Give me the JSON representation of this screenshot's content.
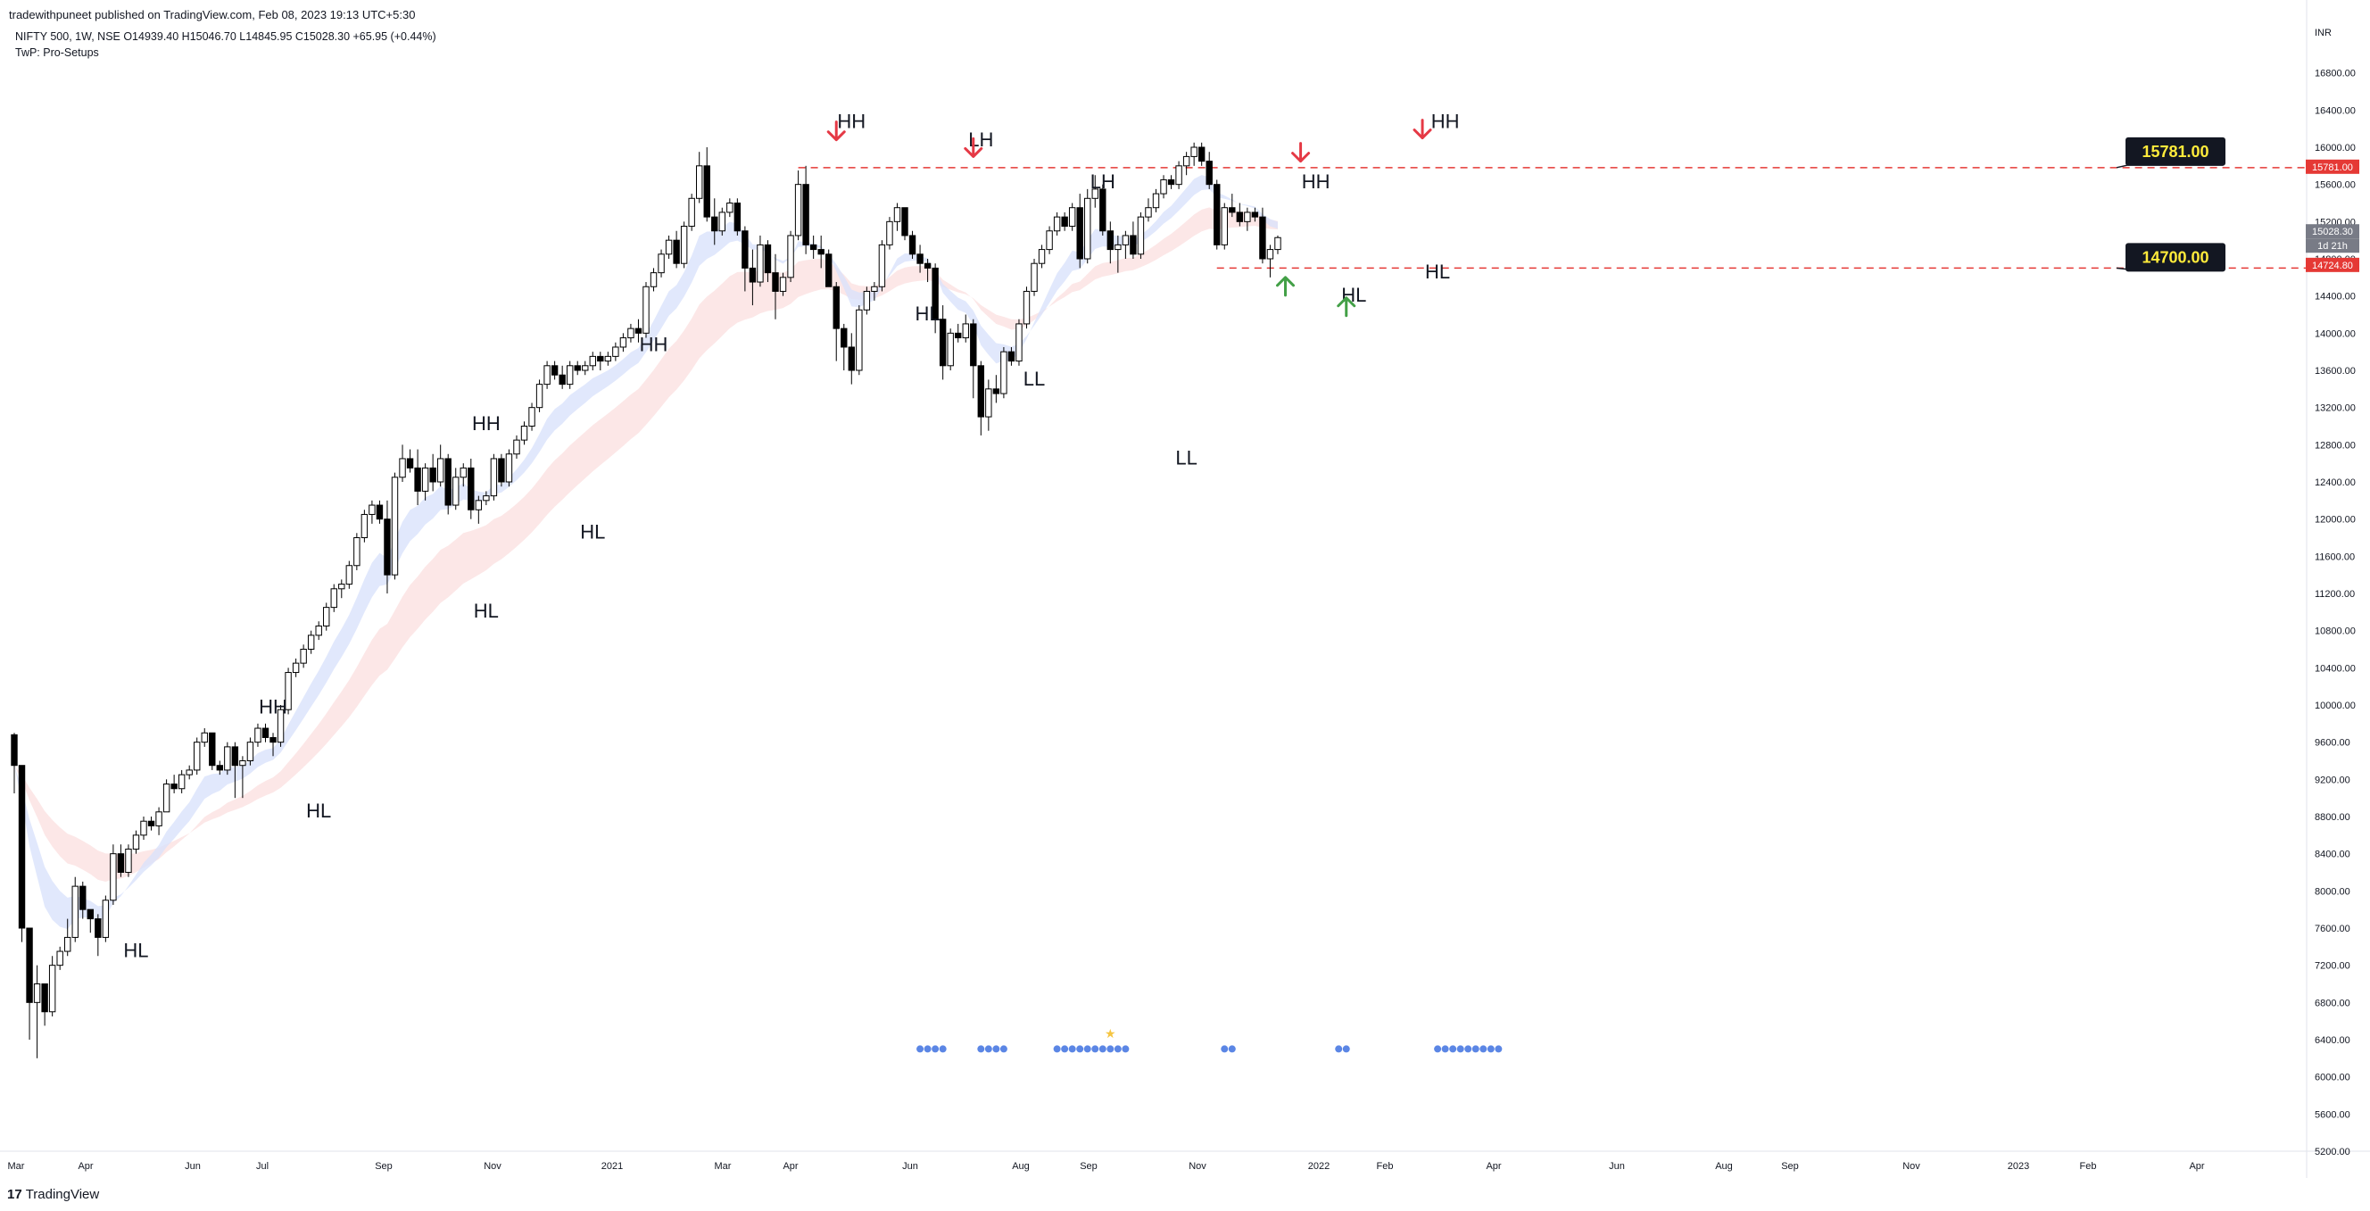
{
  "header": {
    "publisher": "tradewithpuneet published on TradingView.com, Feb 08, 2023 19:13 UTC+5:30",
    "symbol_line": "NIFTY 500, 1W, NSE  O14939.40  H15046.70  L14845.95  C15028.30  +65.95 (+0.44%)",
    "indicator_line": "TwP: Pro-Setups"
  },
  "footer": {
    "brand": "TradingView",
    "logo_glyph": "17"
  },
  "colors": {
    "up_candle": "#ffffff",
    "down_candle": "#000000",
    "fast_band": "#d9e2fb",
    "slow_band": "#fbe1e1",
    "grey_band": "#e6e6e6",
    "resistance_line": "#e53935",
    "arrow_down": "#e53945",
    "arrow_up": "#43a047",
    "signal_dot": "#5b86e5",
    "star": "#f5c542",
    "callout_bg": "#131722",
    "callout_text": "#ffeb3b",
    "price_badge": "#787b86",
    "red_badge": "#e53935"
  },
  "chart_data": {
    "type": "candlestick",
    "title": "",
    "xlabel": "",
    "ylabel": "",
    "currency_label": "INR",
    "ylim": [
      5200,
      17200
    ],
    "x_tick_labels": [
      "Mar",
      "Apr",
      "Jun",
      "Jul",
      "Sep",
      "Nov",
      "2021",
      "Mar",
      "Apr",
      "Jun",
      "Aug",
      "Sep",
      "Nov",
      "2022",
      "Feb",
      "Apr",
      "Jun",
      "Aug",
      "Sep",
      "Nov",
      "2023",
      "Feb",
      "Apr"
    ],
    "y_tick_labels": [
      5200,
      5600,
      6000,
      6400,
      6800,
      7200,
      7600,
      8000,
      8400,
      8800,
      9200,
      9600,
      10000,
      10400,
      10800,
      11200,
      11600,
      12000,
      12400,
      12800,
      13200,
      13600,
      14000,
      14400,
      14800,
      15200,
      15600,
      16000,
      16400,
      16800
    ],
    "candles_ohlc_weekly_start_mar_2020": [
      [
        9680,
        9700,
        9050,
        9350
      ],
      [
        9350,
        9350,
        7450,
        7600
      ],
      [
        7600,
        7600,
        6400,
        6800
      ],
      [
        6800,
        7200,
        6200,
        7000
      ],
      [
        7000,
        7000,
        6550,
        6700
      ],
      [
        6700,
        7300,
        6650,
        7200
      ],
      [
        7200,
        7400,
        7150,
        7350
      ],
      [
        7350,
        7700,
        7300,
        7500
      ],
      [
        7500,
        8150,
        7450,
        8050
      ],
      [
        8050,
        8100,
        7700,
        7800
      ],
      [
        7800,
        7800,
        7550,
        7700
      ],
      [
        7700,
        7750,
        7300,
        7500
      ],
      [
        7500,
        7950,
        7450,
        7900
      ],
      [
        7900,
        8500,
        7850,
        8400
      ],
      [
        8400,
        8500,
        8150,
        8200
      ],
      [
        8200,
        8500,
        8150,
        8450
      ],
      [
        8450,
        8650,
        8400,
        8600
      ],
      [
        8600,
        8800,
        8550,
        8750
      ],
      [
        8750,
        8800,
        8650,
        8700
      ],
      [
        8700,
        8900,
        8600,
        8850
      ],
      [
        8850,
        9200,
        8850,
        9150
      ],
      [
        9150,
        9250,
        9050,
        9100
      ],
      [
        9100,
        9300,
        9050,
        9250
      ],
      [
        9250,
        9350,
        9200,
        9300
      ],
      [
        9300,
        9650,
        9250,
        9600
      ],
      [
        9600,
        9750,
        9550,
        9700
      ],
      [
        9700,
        9700,
        9300,
        9350
      ],
      [
        9350,
        9400,
        9250,
        9300
      ],
      [
        9300,
        9600,
        9250,
        9550
      ],
      [
        9550,
        9600,
        9000,
        9350
      ],
      [
        9350,
        9450,
        9000,
        9400
      ],
      [
        9400,
        9650,
        9350,
        9600
      ],
      [
        9600,
        9800,
        9550,
        9750
      ],
      [
        9750,
        9800,
        9600,
        9650
      ],
      [
        9650,
        9700,
        9450,
        9600
      ],
      [
        9600,
        10000,
        9550,
        9950
      ],
      [
        9950,
        10400,
        9900,
        10350
      ],
      [
        10350,
        10500,
        10300,
        10450
      ],
      [
        10450,
        10650,
        10400,
        10600
      ],
      [
        10600,
        10800,
        10550,
        10750
      ],
      [
        10750,
        10900,
        10700,
        10850
      ],
      [
        10850,
        11100,
        10800,
        11050
      ],
      [
        11050,
        11300,
        11000,
        11250
      ],
      [
        11250,
        11350,
        11150,
        11300
      ],
      [
        11300,
        11550,
        11250,
        11500
      ],
      [
        11500,
        11850,
        11450,
        11800
      ],
      [
        11800,
        12100,
        11750,
        12050
      ],
      [
        12050,
        12200,
        11950,
        12150
      ],
      [
        12150,
        12200,
        11950,
        12000
      ],
      [
        12000,
        12200,
        11200,
        11400
      ],
      [
        11400,
        12500,
        11350,
        12450
      ],
      [
        12450,
        12800,
        12400,
        12650
      ],
      [
        12650,
        12750,
        12500,
        12550
      ],
      [
        12550,
        12750,
        12150,
        12300
      ],
      [
        12300,
        12600,
        12200,
        12550
      ],
      [
        12550,
        12700,
        12300,
        12400
      ],
      [
        12400,
        12800,
        12350,
        12650
      ],
      [
        12650,
        12700,
        12050,
        12150
      ],
      [
        12150,
        12550,
        12100,
        12450
      ],
      [
        12450,
        12600,
        12350,
        12550
      ],
      [
        12550,
        12650,
        12000,
        12100
      ],
      [
        12100,
        12250,
        11950,
        12200
      ],
      [
        12200,
        12300,
        12150,
        12250
      ],
      [
        12250,
        12700,
        12200,
        12650
      ],
      [
        12650,
        12700,
        12350,
        12400
      ],
      [
        12400,
        12750,
        12350,
        12700
      ],
      [
        12700,
        12900,
        12650,
        12850
      ],
      [
        12850,
        13050,
        12800,
        13000
      ],
      [
        13000,
        13250,
        12950,
        13200
      ],
      [
        13200,
        13500,
        13150,
        13450
      ],
      [
        13450,
        13700,
        13400,
        13650
      ],
      [
        13650,
        13700,
        13500,
        13550
      ],
      [
        13550,
        13650,
        13400,
        13450
      ],
      [
        13450,
        13700,
        13400,
        13650
      ],
      [
        13650,
        13700,
        13550,
        13600
      ],
      [
        13600,
        13700,
        13550,
        13650
      ],
      [
        13650,
        13800,
        13600,
        13750
      ],
      [
        13750,
        13800,
        13600,
        13700
      ],
      [
        13700,
        13800,
        13650,
        13750
      ],
      [
        13750,
        13900,
        13700,
        13850
      ],
      [
        13850,
        14000,
        13800,
        13950
      ],
      [
        13950,
        14100,
        13900,
        14050
      ],
      [
        14050,
        14150,
        13900,
        14000
      ],
      [
        14000,
        14550,
        13950,
        14500
      ],
      [
        14500,
        14700,
        14450,
        14650
      ],
      [
        14650,
        14900,
        14600,
        14850
      ],
      [
        14850,
        15050,
        14800,
        15000
      ],
      [
        15000,
        15100,
        14700,
        14750
      ],
      [
        14750,
        15200,
        14700,
        15150
      ],
      [
        15150,
        15500,
        15100,
        15450
      ],
      [
        15450,
        15950,
        15400,
        15800
      ],
      [
        15800,
        16000,
        15200,
        15250
      ],
      [
        15250,
        15450,
        14950,
        15100
      ],
      [
        15100,
        15350,
        15050,
        15300
      ],
      [
        15300,
        15450,
        15250,
        15400
      ],
      [
        15400,
        15450,
        15050,
        15100
      ],
      [
        15100,
        15150,
        14450,
        14700
      ],
      [
        14700,
        14900,
        14300,
        14550
      ],
      [
        14550,
        15050,
        14500,
        14950
      ],
      [
        14950,
        15000,
        14550,
        14650
      ],
      [
        14650,
        14850,
        14150,
        14450
      ],
      [
        14450,
        14650,
        14400,
        14600
      ],
      [
        14600,
        15100,
        14550,
        15050
      ],
      [
        15050,
        15750,
        15000,
        15600
      ],
      [
        15600,
        15800,
        14850,
        14950
      ],
      [
        14950,
        15050,
        14800,
        14900
      ],
      [
        14900,
        15050,
        14700,
        14850
      ],
      [
        14850,
        14900,
        14500,
        14500
      ],
      [
        14500,
        14550,
        13700,
        14050
      ],
      [
        14050,
        14100,
        13600,
        13850
      ],
      [
        13850,
        14000,
        13450,
        13600
      ],
      [
        13600,
        14300,
        13550,
        14250
      ],
      [
        14250,
        14500,
        14200,
        14450
      ],
      [
        14450,
        14550,
        14350,
        14500
      ],
      [
        14500,
        15000,
        14450,
        14950
      ],
      [
        14950,
        15250,
        14900,
        15200
      ],
      [
        15200,
        15400,
        15100,
        15350
      ],
      [
        15350,
        15350,
        15000,
        15050
      ],
      [
        15050,
        15100,
        14800,
        14850
      ],
      [
        14850,
        14950,
        14650,
        14750
      ],
      [
        14750,
        14800,
        14550,
        14700
      ],
      [
        14700,
        14750,
        14000,
        14150
      ],
      [
        14150,
        14300,
        13500,
        13650
      ],
      [
        13650,
        14050,
        13600,
        14000
      ],
      [
        14000,
        14100,
        13900,
        13950
      ],
      [
        13950,
        14200,
        13900,
        14100
      ],
      [
        14100,
        14150,
        13300,
        13650
      ],
      [
        13650,
        13700,
        12900,
        13100
      ],
      [
        13100,
        13500,
        12950,
        13400
      ],
      [
        13400,
        13550,
        13250,
        13350
      ],
      [
        13350,
        13850,
        13300,
        13800
      ],
      [
        13800,
        13850,
        13650,
        13700
      ],
      [
        13700,
        14150,
        13650,
        14100
      ],
      [
        14100,
        14500,
        14050,
        14450
      ],
      [
        14450,
        14800,
        14400,
        14750
      ],
      [
        14750,
        14950,
        14700,
        14900
      ],
      [
        14900,
        15150,
        14850,
        15100
      ],
      [
        15100,
        15300,
        15050,
        15250
      ],
      [
        15250,
        15300,
        15100,
        15150
      ],
      [
        15150,
        15400,
        15100,
        15350
      ],
      [
        15350,
        15500,
        14700,
        14800
      ],
      [
        14800,
        15550,
        14750,
        15450
      ],
      [
        15450,
        15700,
        15350,
        15550
      ],
      [
        15550,
        15600,
        15050,
        15100
      ],
      [
        15100,
        15200,
        14750,
        14900
      ],
      [
        14900,
        15050,
        14650,
        14950
      ],
      [
        14950,
        15100,
        14800,
        15050
      ],
      [
        15050,
        15200,
        14800,
        14850
      ],
      [
        14850,
        15300,
        14800,
        15250
      ],
      [
        15250,
        15450,
        15200,
        15350
      ],
      [
        15350,
        15550,
        15300,
        15500
      ],
      [
        15500,
        15700,
        15450,
        15650
      ],
      [
        15650,
        15700,
        15550,
        15600
      ],
      [
        15600,
        15850,
        15550,
        15800
      ],
      [
        15800,
        15950,
        15700,
        15900
      ],
      [
        15900,
        16050,
        15800,
        16000
      ],
      [
        16000,
        16050,
        15800,
        15850
      ],
      [
        15850,
        15950,
        15550,
        15600
      ],
      [
        15600,
        15650,
        14900,
        14950
      ],
      [
        14950,
        15400,
        14900,
        15350
      ],
      [
        15350,
        15500,
        15250,
        15300
      ],
      [
        15300,
        15400,
        15150,
        15200
      ],
      [
        15200,
        15350,
        15100,
        15300
      ],
      [
        15300,
        15350,
        15200,
        15250
      ],
      [
        15250,
        15350,
        14750,
        14800
      ],
      [
        14800,
        14950,
        14600,
        14900
      ],
      [
        14900,
        15050,
        14850,
        15028
      ]
    ],
    "reference_lines": [
      {
        "value": 15781,
        "label": "15781.00"
      },
      {
        "value": 14700,
        "label": "14700.00"
      }
    ],
    "price_badges": [
      {
        "value": 15781,
        "text": "15781.00"
      },
      {
        "value": 15028.3,
        "text": "15028.30"
      },
      {
        "value": 15028.3,
        "text": "1d 21h"
      },
      {
        "value": 14724.8,
        "text": "14724.80"
      }
    ],
    "annotations": [
      {
        "text": "HL",
        "candle": 16,
        "value": 7500,
        "pos": "below"
      },
      {
        "text": "HH",
        "candle": 34,
        "value": 9850,
        "pos": "above"
      },
      {
        "text": "HL",
        "candle": 40,
        "value": 9000,
        "pos": "below"
      },
      {
        "text": "HH",
        "candle": 62,
        "value": 12900,
        "pos": "above"
      },
      {
        "text": "HL",
        "candle": 62,
        "value": 11150,
        "pos": "below"
      },
      {
        "text": "HH",
        "candle": 84,
        "value": 13750,
        "pos": "above"
      },
      {
        "text": "HL",
        "candle": 76,
        "value": 12000,
        "pos": "below"
      },
      {
        "text": "HH",
        "candle": 110,
        "value": 16150,
        "pos": "above"
      },
      {
        "text": "HL",
        "candle": 120,
        "value": 14350,
        "pos": "below"
      },
      {
        "text": "LH",
        "candle": 127,
        "value": 15950,
        "pos": "above"
      },
      {
        "text": "LL",
        "candle": 134,
        "value": 13650,
        "pos": "below"
      },
      {
        "text": "LH",
        "candle": 143,
        "value": 15500,
        "pos": "above"
      },
      {
        "text": "LL",
        "candle": 154,
        "value": 12800,
        "pos": "below"
      },
      {
        "text": "HH",
        "candle": 171,
        "value": 15500,
        "pos": "above"
      },
      {
        "text": "HL",
        "candle": 176,
        "value": 14550,
        "pos": "below"
      },
      {
        "text": "HH",
        "candle": 188,
        "value": 16150,
        "pos": "above"
      },
      {
        "text": "HL",
        "candle": 187,
        "value": 14800,
        "pos": "below"
      }
    ],
    "arrows": [
      {
        "dir": "down",
        "candle": 108,
        "value": 16080
      },
      {
        "dir": "down",
        "candle": 126,
        "value": 15900
      },
      {
        "dir": "down",
        "candle": 169,
        "value": 15850
      },
      {
        "dir": "down",
        "candle": 185,
        "value": 16100
      },
      {
        "dir": "up",
        "candle": 167,
        "value": 14600
      },
      {
        "dir": "up",
        "candle": 175,
        "value": 14380
      }
    ],
    "signal_dots": [
      [
        119,
        6300
      ],
      [
        120,
        6300
      ],
      [
        121,
        6300
      ],
      [
        122,
        6300
      ],
      [
        127,
        6300
      ],
      [
        128,
        6300
      ],
      [
        129,
        6300
      ],
      [
        130,
        6300
      ],
      [
        137,
        6300
      ],
      [
        138,
        6300
      ],
      [
        139,
        6300
      ],
      [
        140,
        6300
      ],
      [
        141,
        6300
      ],
      [
        142,
        6300
      ],
      [
        143,
        6300
      ],
      [
        144,
        6300
      ],
      [
        145,
        6300
      ],
      [
        146,
        6300
      ],
      [
        159,
        6300
      ],
      [
        160,
        6300
      ],
      [
        174,
        6300
      ],
      [
        175,
        6300
      ],
      [
        187,
        6300
      ],
      [
        188,
        6300
      ],
      [
        189,
        6300
      ],
      [
        190,
        6300
      ],
      [
        191,
        6300
      ],
      [
        192,
        6300
      ],
      [
        193,
        6300
      ],
      [
        194,
        6300
      ],
      [
        195,
        6300
      ]
    ],
    "star_marker": {
      "candle": 144,
      "value": 6420
    },
    "grid": false,
    "legend": "none"
  }
}
